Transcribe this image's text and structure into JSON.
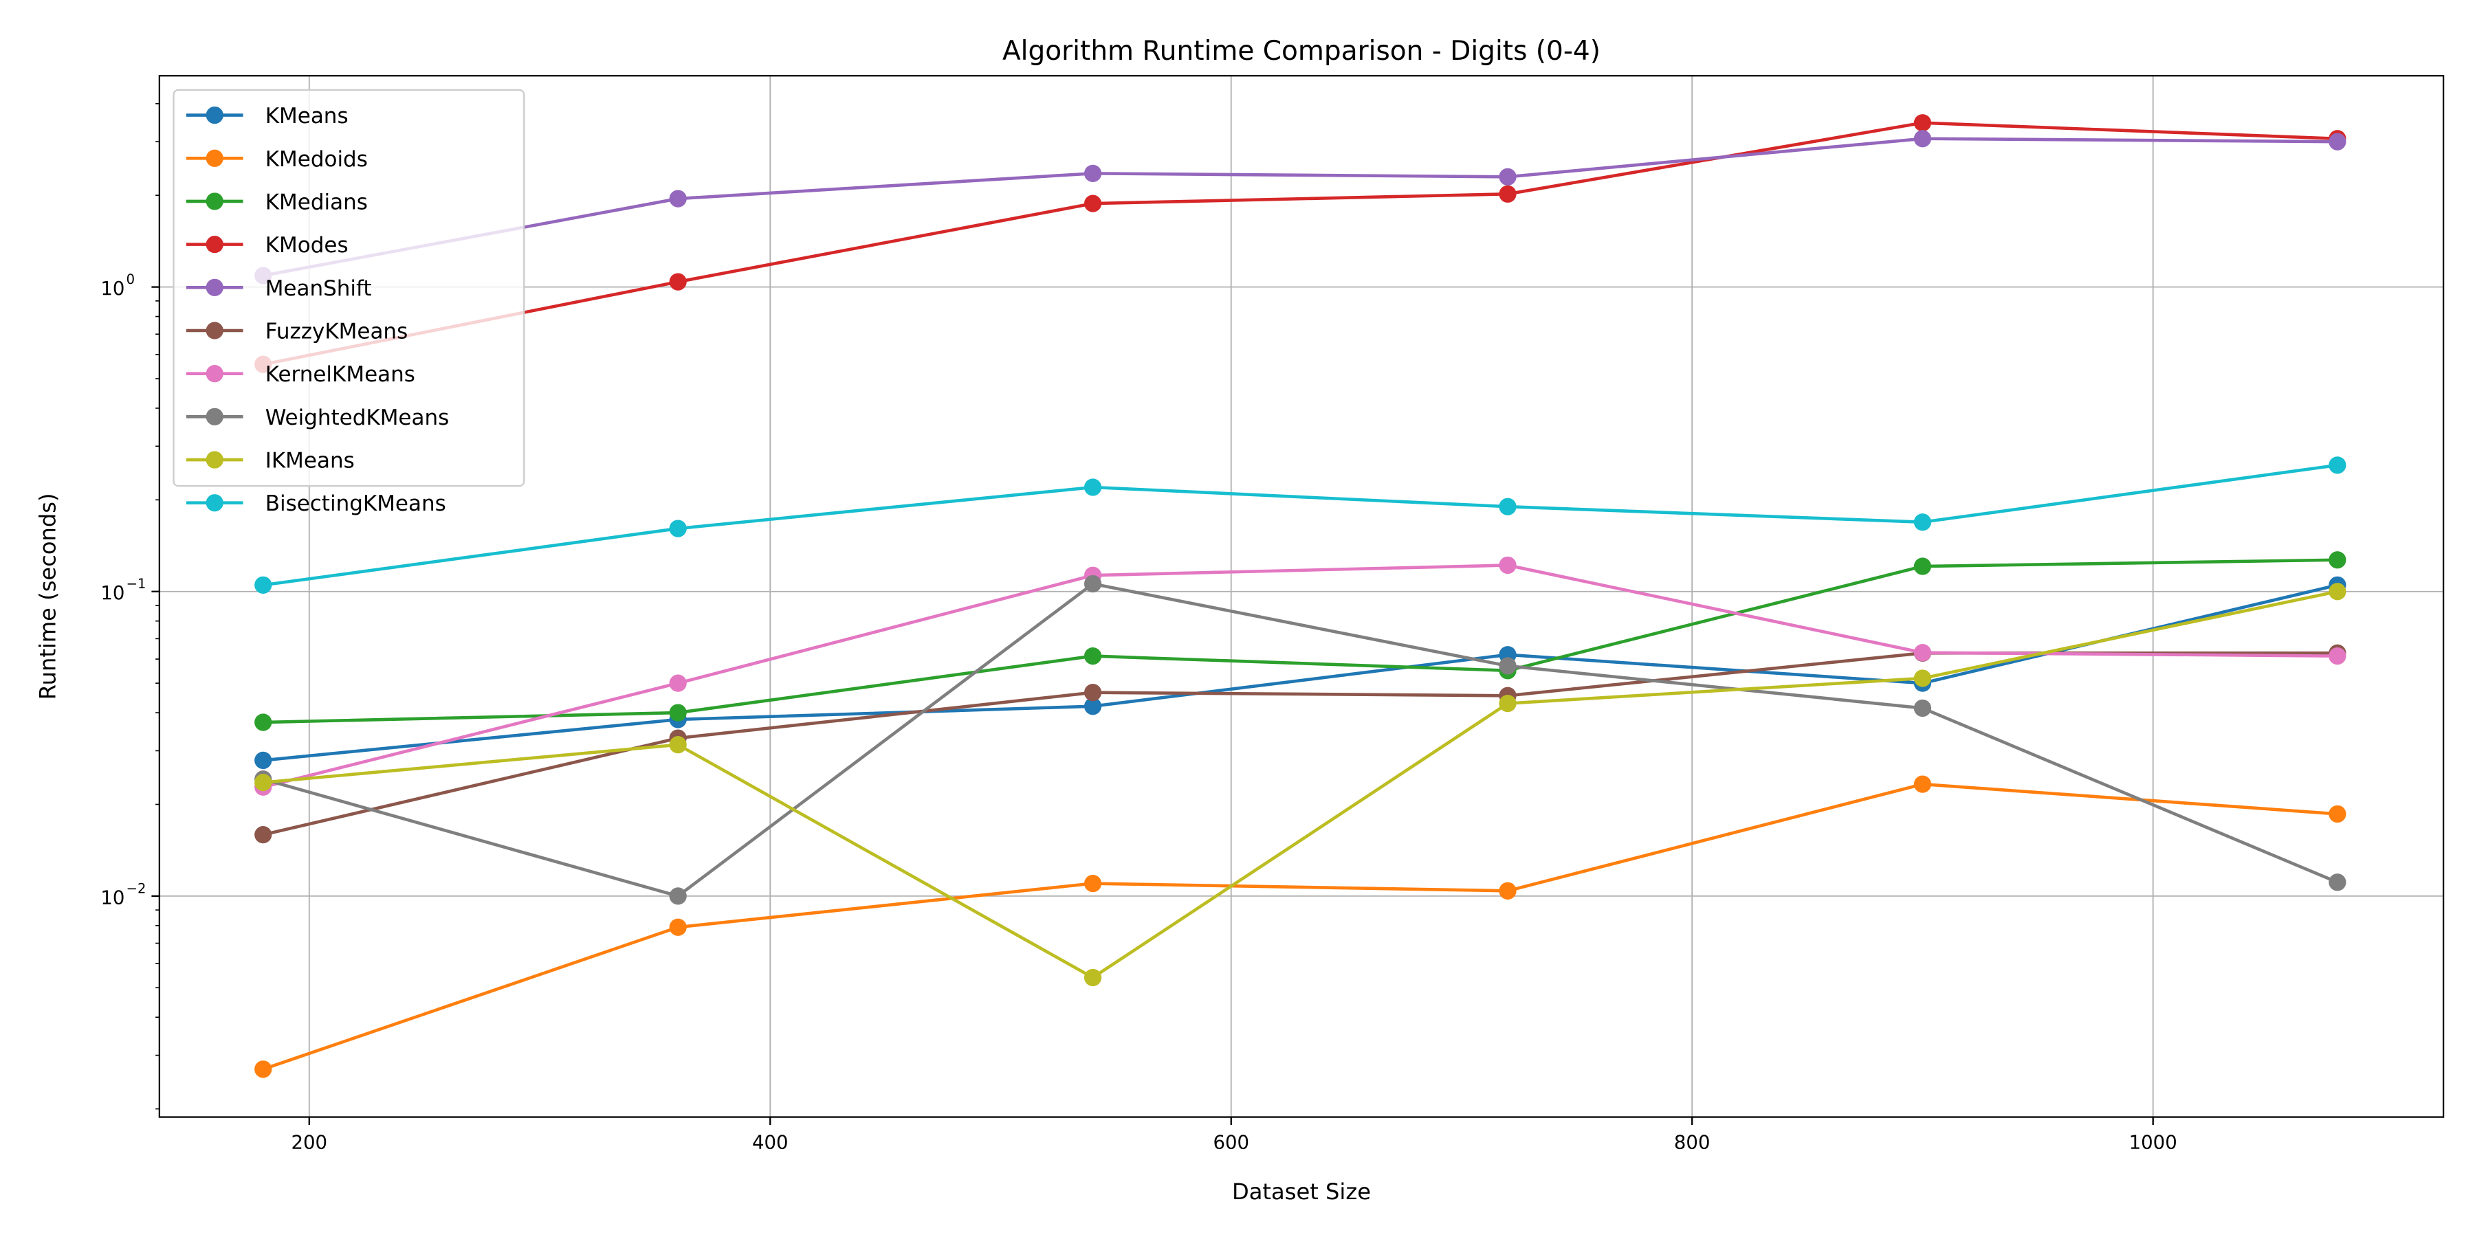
{
  "chart_data": {
    "type": "line",
    "title": "Algorithm Runtime Comparison - Digits (0-4)",
    "xlabel": "Dataset Size",
    "ylabel": "Runtime (seconds)",
    "x": [
      180,
      360,
      540,
      720,
      900,
      1080
    ],
    "xlim": [
      135,
      1126
    ],
    "ylim": [
      0.00188,
      4.94
    ],
    "yscale": "log",
    "grid": true,
    "legend_placement": "upper-left",
    "x_ticks": [
      200,
      400,
      600,
      800,
      1000
    ],
    "y_ticks": [
      0.01,
      0.1,
      1
    ],
    "y_tick_labels": [
      "10",
      "10",
      "10"
    ],
    "y_tick_exponents": [
      "−2",
      "−1",
      "0"
    ],
    "series": [
      {
        "name": "KMeans",
        "color": "#1f77b4",
        "values": [
          0.0279,
          0.038,
          0.042,
          0.062,
          0.05,
          0.105
        ]
      },
      {
        "name": "KMedoids",
        "color": "#ff7f0e",
        "values": [
          0.0027,
          0.0079,
          0.011,
          0.0104,
          0.0233,
          0.0186
        ]
      },
      {
        "name": "KMedians",
        "color": "#2ca02c",
        "values": [
          0.0372,
          0.04,
          0.0614,
          0.055,
          0.121,
          0.127
        ]
      },
      {
        "name": "KModes",
        "color": "#d62728",
        "values": [
          0.557,
          1.04,
          1.88,
          2.02,
          3.46,
          3.07
        ]
      },
      {
        "name": "MeanShift",
        "color": "#9467bd",
        "values": [
          1.09,
          1.95,
          2.36,
          2.3,
          3.07,
          3.0
        ]
      },
      {
        "name": "FuzzyKMeans",
        "color": "#8c564b",
        "values": [
          0.0159,
          0.033,
          0.0466,
          0.0455,
          0.0628,
          0.0628
        ]
      },
      {
        "name": "KernelKMeans",
        "color": "#e377c2",
        "values": [
          0.0228,
          0.05,
          0.113,
          0.122,
          0.063,
          0.0614
        ]
      },
      {
        "name": "WeightedKMeans",
        "color": "#7f7f7f",
        "values": [
          0.0242,
          0.01,
          0.106,
          0.057,
          0.0414,
          0.0111
        ]
      },
      {
        "name": "IKMeans",
        "color": "#bcbd22",
        "values": [
          0.0236,
          0.0314,
          0.0054,
          0.0429,
          0.0519,
          0.1
        ]
      },
      {
        "name": "BisectingKMeans",
        "color": "#17becf",
        "values": [
          0.105,
          0.161,
          0.22,
          0.19,
          0.169,
          0.26
        ]
      }
    ]
  }
}
